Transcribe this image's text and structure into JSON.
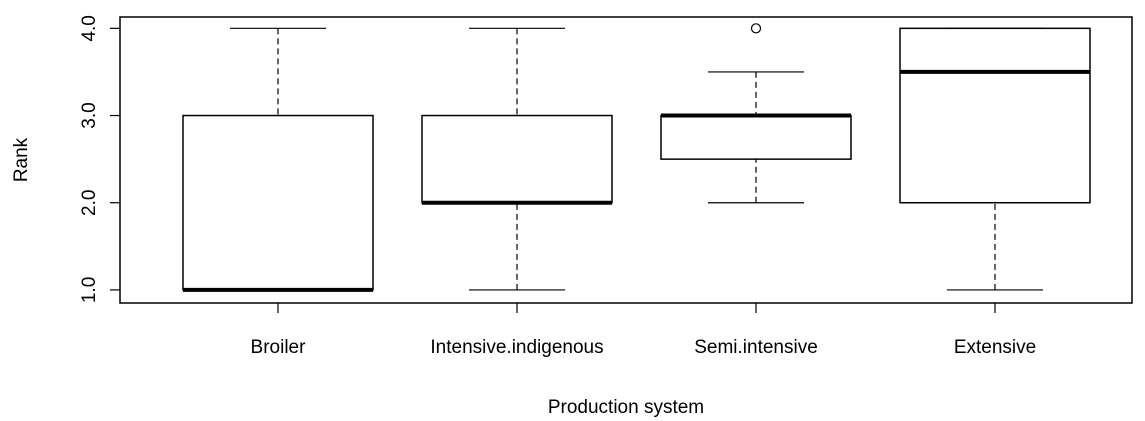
{
  "chart_data": {
    "type": "box",
    "x_label": "Production system",
    "y_label": "Rank",
    "categories": [
      "Broiler",
      "Intensive.indigenous",
      "Semi.intensive",
      "Extensive"
    ],
    "min": [
      1,
      1,
      2,
      1
    ],
    "q1": [
      1,
      2,
      2.5,
      2
    ],
    "median": [
      1,
      2,
      3,
      3.5
    ],
    "q3": [
      3,
      3,
      3,
      4
    ],
    "max": [
      4,
      4,
      3.5,
      4
    ],
    "outliers": [
      [],
      [],
      [
        4
      ],
      []
    ],
    "color": "#000000",
    "ylim": [
      0.85,
      4.13
    ],
    "yticks": [
      {
        "value": 1,
        "label": "1.0"
      },
      {
        "value": 2,
        "label": "2.0"
      },
      {
        "value": 3,
        "label": "3.0"
      },
      {
        "value": 4,
        "label": "4.0"
      }
    ]
  }
}
